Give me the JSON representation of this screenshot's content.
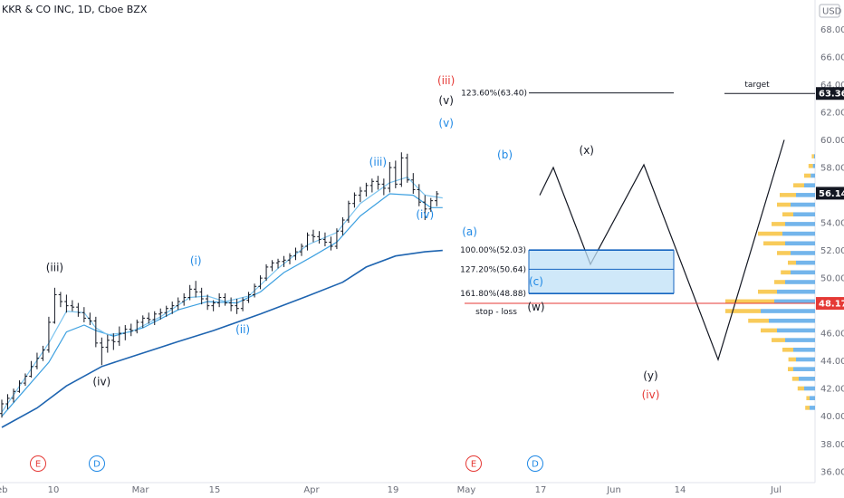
{
  "title": "KKR & CO INC, 1D, Cboe BZX",
  "currency": "USD",
  "colors": {
    "bar": "#131722",
    "ma_fast": "#7cc4ef",
    "ma_mid": "#3da0e0",
    "ma_slow": "#1e64b0",
    "label_blue": "#1e88e5",
    "label_black": "#131722",
    "label_red": "#e53935",
    "vp_up": "#f7c548",
    "vp_down": "#5aa8e8",
    "box_fill": "#bfe0f7",
    "box_stroke": "#1565c0",
    "stop_line": "#e53935"
  },
  "chart_data": {
    "type": "ohlc",
    "x_ticks": [
      "eb",
      "10",
      "Mar",
      "15",
      "Apr",
      "19",
      "May",
      "17",
      "Jun",
      "14",
      "Jul"
    ],
    "y_ticks": [
      36,
      38,
      40,
      42,
      44,
      46,
      48,
      50,
      52,
      54,
      56,
      58,
      60,
      62,
      64,
      66,
      68
    ],
    "ylim": [
      35.2,
      69.6
    ],
    "ohlc": [
      [
        40.2,
        41.2,
        39.9,
        40.9
      ],
      [
        40.9,
        41.6,
        40.5,
        41.3
      ],
      [
        41.3,
        42.0,
        41.0,
        41.8
      ],
      [
        41.8,
        42.6,
        41.7,
        42.4
      ],
      [
        42.4,
        43.1,
        42.2,
        42.9
      ],
      [
        42.9,
        44.0,
        42.8,
        43.6
      ],
      [
        43.6,
        44.6,
        43.4,
        44.2
      ],
      [
        44.2,
        45.1,
        44.0,
        44.8
      ],
      [
        44.8,
        47.2,
        44.6,
        46.8
      ],
      [
        46.8,
        49.3,
        46.7,
        48.8
      ],
      [
        48.8,
        49.0,
        47.9,
        48.3
      ],
      [
        48.3,
        48.8,
        47.5,
        48.0
      ],
      [
        48.0,
        48.4,
        47.6,
        47.9
      ],
      [
        47.9,
        48.2,
        47.2,
        47.5
      ],
      [
        47.5,
        47.9,
        46.8,
        47.1
      ],
      [
        47.1,
        47.5,
        46.6,
        46.9
      ],
      [
        46.9,
        47.2,
        45.0,
        45.3
      ],
      [
        45.3,
        45.7,
        43.7,
        45.0
      ],
      [
        45.0,
        45.9,
        44.6,
        45.5
      ],
      [
        45.5,
        46.0,
        44.8,
        45.4
      ],
      [
        45.4,
        46.5,
        45.1,
        46.0
      ],
      [
        46.0,
        46.6,
        45.5,
        46.3
      ],
      [
        46.3,
        46.7,
        45.8,
        46.2
      ],
      [
        46.2,
        47.0,
        46.0,
        46.8
      ],
      [
        46.8,
        47.3,
        46.4,
        47.1
      ],
      [
        47.1,
        47.5,
        46.7,
        47.0
      ],
      [
        47.0,
        47.6,
        46.6,
        47.4
      ],
      [
        47.4,
        47.8,
        47.0,
        47.5
      ],
      [
        47.5,
        48.0,
        47.2,
        47.8
      ],
      [
        47.8,
        48.3,
        47.4,
        48.0
      ],
      [
        48.0,
        48.6,
        47.7,
        48.3
      ],
      [
        48.3,
        48.9,
        48.0,
        48.6
      ],
      [
        48.6,
        49.5,
        48.4,
        49.2
      ],
      [
        49.2,
        49.8,
        48.6,
        49.0
      ],
      [
        49.0,
        49.3,
        48.1,
        48.5
      ],
      [
        48.5,
        48.8,
        47.7,
        48.0
      ],
      [
        48.0,
        48.4,
        47.6,
        48.2
      ],
      [
        48.2,
        48.9,
        47.9,
        48.6
      ],
      [
        48.6,
        48.9,
        48.0,
        48.2
      ],
      [
        48.2,
        48.6,
        47.6,
        48.0
      ],
      [
        48.0,
        48.5,
        47.4,
        47.8
      ],
      [
        47.8,
        48.6,
        47.6,
        48.4
      ],
      [
        48.4,
        49.0,
        48.2,
        48.8
      ],
      [
        48.8,
        49.6,
        48.6,
        49.4
      ],
      [
        49.4,
        50.2,
        49.2,
        50.0
      ],
      [
        50.0,
        51.0,
        49.8,
        50.8
      ],
      [
        50.8,
        51.3,
        50.5,
        51.1
      ],
      [
        51.1,
        51.4,
        50.7,
        51.2
      ],
      [
        51.2,
        51.6,
        50.8,
        51.3
      ],
      [
        51.3,
        51.8,
        51.0,
        51.6
      ],
      [
        51.6,
        52.2,
        51.3,
        51.9
      ],
      [
        51.9,
        52.5,
        51.6,
        52.3
      ],
      [
        52.3,
        53.3,
        52.0,
        53.1
      ],
      [
        53.1,
        53.5,
        52.6,
        53.0
      ],
      [
        53.0,
        53.4,
        52.5,
        52.8
      ],
      [
        52.8,
        53.3,
        52.3,
        52.6
      ],
      [
        52.6,
        53.0,
        52.0,
        52.3
      ],
      [
        52.3,
        53.6,
        52.1,
        53.4
      ],
      [
        53.4,
        54.4,
        53.1,
        54.2
      ],
      [
        54.2,
        55.6,
        54.0,
        55.4
      ],
      [
        55.4,
        56.2,
        55.1,
        56.0
      ],
      [
        56.0,
        56.6,
        55.5,
        56.3
      ],
      [
        56.3,
        56.9,
        55.9,
        56.7
      ],
      [
        56.7,
        57.2,
        56.2,
        57.0
      ],
      [
        57.0,
        57.4,
        56.4,
        56.8
      ],
      [
        56.8,
        57.2,
        56.0,
        56.5
      ],
      [
        56.5,
        58.4,
        56.2,
        58.0
      ],
      [
        58.0,
        58.5,
        56.5,
        56.8
      ],
      [
        56.8,
        59.1,
        56.6,
        58.7
      ],
      [
        58.7,
        59.0,
        56.9,
        57.1
      ],
      [
        57.1,
        57.6,
        56.1,
        56.4
      ],
      [
        56.4,
        56.8,
        55.2,
        55.5
      ],
      [
        55.5,
        56.0,
        54.2,
        55.0
      ],
      [
        55.0,
        55.8,
        54.8,
        55.6
      ],
      [
        55.6,
        56.3,
        55.2,
        56.1
      ]
    ],
    "ma_fast": [
      [
        0,
        40.3
      ],
      [
        8,
        45.3
      ],
      [
        11,
        47.6
      ],
      [
        14,
        47.5
      ],
      [
        16,
        46.4
      ],
      [
        18,
        45.9
      ],
      [
        22,
        46.1
      ],
      [
        27,
        47.2
      ],
      [
        32,
        48.6
      ],
      [
        35,
        48.7
      ],
      [
        38,
        48.3
      ],
      [
        42,
        48.7
      ],
      [
        47,
        50.7
      ],
      [
        52,
        52.4
      ],
      [
        57,
        53.3
      ],
      [
        61,
        55.4
      ],
      [
        66,
        56.9
      ],
      [
        69,
        57.3
      ],
      [
        72,
        56.0
      ],
      [
        75,
        55.8
      ]
    ],
    "ma_mid": [
      [
        0,
        40.0
      ],
      [
        8,
        43.9
      ],
      [
        11,
        46.1
      ],
      [
        14,
        46.6
      ],
      [
        16,
        46.2
      ],
      [
        19,
        45.8
      ],
      [
        24,
        46.4
      ],
      [
        30,
        47.7
      ],
      [
        35,
        48.3
      ],
      [
        40,
        48.2
      ],
      [
        44,
        49.0
      ],
      [
        48,
        50.4
      ],
      [
        53,
        51.6
      ],
      [
        57,
        52.6
      ],
      [
        61,
        54.5
      ],
      [
        66,
        56.1
      ],
      [
        70,
        56.0
      ],
      [
        73,
        55.1
      ],
      [
        75,
        55.1
      ]
    ],
    "ma_slow": [
      [
        0,
        39.2
      ],
      [
        6,
        40.6
      ],
      [
        11,
        42.2
      ],
      [
        17,
        43.6
      ],
      [
        22,
        44.3
      ],
      [
        30,
        45.4
      ],
      [
        36,
        46.2
      ],
      [
        44,
        47.4
      ],
      [
        52,
        48.7
      ],
      [
        58,
        49.7
      ],
      [
        62,
        50.8
      ],
      [
        67,
        51.6
      ],
      [
        72,
        51.9
      ],
      [
        75,
        52.0
      ]
    ],
    "projection": [
      [
        56.0,
        596
      ],
      [
        58.0,
        611
      ],
      [
        51.0,
        652
      ],
      [
        58.2,
        711
      ],
      [
        44.1,
        793
      ],
      [
        60.0,
        866
      ]
    ],
    "fib_levels": [
      {
        "label": "100.00%(52.03)",
        "value": 52.03
      },
      {
        "label": "127.20%(50.64)",
        "value": 50.64
      },
      {
        "label": "161.80%(48.88)",
        "value": 48.88
      },
      {
        "label": "123.60%(63.40)",
        "value": 63.4
      }
    ],
    "target": {
      "label": "target",
      "value": 63.36
    },
    "stop_loss": {
      "label": "stop - loss",
      "value": 48.17
    },
    "price_tags": [
      {
        "text": "63.36",
        "value": 63.36,
        "style": "black"
      },
      {
        "text": "56.14",
        "value": 56.14,
        "style": "black"
      },
      {
        "text": "48.17",
        "value": 48.17,
        "style": "red"
      }
    ],
    "wave_labels": [
      {
        "text": "(iii)",
        "color": "black",
        "bar": 9,
        "value": 48.0,
        "dy": -38
      },
      {
        "text": "(iv)",
        "color": "black",
        "bar": 17,
        "value": 43.7,
        "dy": 22
      },
      {
        "text": "(i)",
        "color": "blue",
        "bar": 33,
        "value": 49.8,
        "dy": -18
      },
      {
        "text": "(ii)",
        "color": "blue",
        "bar": 41,
        "value": 46.0,
        "dy": 0
      },
      {
        "text": "(iii)",
        "color": "blue",
        "bar": 64,
        "value": 57.4,
        "dy": -11
      },
      {
        "text": "(iv)",
        "color": "blue",
        "bar": 72,
        "value": 54.0,
        "dy": -5
      },
      {
        "text": "(v)",
        "color": "blue",
        "bar": 75.6,
        "value": 59.1,
        "dy": -28
      },
      {
        "text": "(v)",
        "color": "black",
        "bar": 75.6,
        "value": 59.1,
        "dy": -53
      },
      {
        "text": "(iii)",
        "color": "red",
        "bar": 75.6,
        "value": 59.1,
        "dy": -75
      },
      {
        "text": "(a)",
        "color": "blue",
        "bar": 79.6,
        "value": 54.0,
        "dy": 14
      },
      {
        "text": "(b)",
        "color": "blue",
        "bar": 85.6,
        "value": 58.0,
        "dy": -10
      },
      {
        "text": "(c)",
        "color": "blue",
        "bar": 90.9,
        "value": 51.0,
        "dy": 23
      },
      {
        "text": "(w)",
        "color": "black",
        "bar": 90.9,
        "value": 51.0,
        "dy": 51
      },
      {
        "text": "(x)",
        "color": "black",
        "bar": 99.5,
        "value": 58.2,
        "dy": -12
      },
      {
        "text": "(y)",
        "color": "black",
        "bar": 110.4,
        "value": 44.1,
        "dy": 22
      },
      {
        "text": "(iv)",
        "color": "red",
        "bar": 110.4,
        "value": 44.1,
        "dy": 43
      }
    ],
    "event_markers": [
      {
        "text": "E",
        "color": "red"
      },
      {
        "text": "D",
        "color": "blue"
      },
      {
        "text": "E",
        "color": "red"
      },
      {
        "text": "D",
        "color": "blue"
      }
    ],
    "volume_profile": [
      [
        40.6,
        0.08,
        0.1
      ],
      [
        41.3,
        0.06,
        0.1
      ],
      [
        42.0,
        0.12,
        0.2
      ],
      [
        42.7,
        0.12,
        0.3
      ],
      [
        43.4,
        0.1,
        0.4
      ],
      [
        44.1,
        0.14,
        0.35
      ],
      [
        44.8,
        0.2,
        0.4
      ],
      [
        45.5,
        0.25,
        0.55
      ],
      [
        46.2,
        0.3,
        0.7
      ],
      [
        46.9,
        0.38,
        0.85
      ],
      [
        47.6,
        0.65,
        1.0
      ],
      [
        48.3,
        0.9,
        0.75
      ],
      [
        49.0,
        0.35,
        0.7
      ],
      [
        49.7,
        0.2,
        0.55
      ],
      [
        50.4,
        0.18,
        0.45
      ],
      [
        51.1,
        0.15,
        0.35
      ],
      [
        51.8,
        0.25,
        0.45
      ],
      [
        52.5,
        0.4,
        0.55
      ],
      [
        53.2,
        0.45,
        0.6
      ],
      [
        53.9,
        0.25,
        0.55
      ],
      [
        54.6,
        0.2,
        0.4
      ],
      [
        55.3,
        0.25,
        0.45
      ],
      [
        56.0,
        0.3,
        0.35
      ],
      [
        56.7,
        0.2,
        0.2
      ],
      [
        57.4,
        0.12,
        0.08
      ],
      [
        58.1,
        0.08,
        0.04
      ],
      [
        58.8,
        0.04,
        0.02
      ]
    ]
  }
}
